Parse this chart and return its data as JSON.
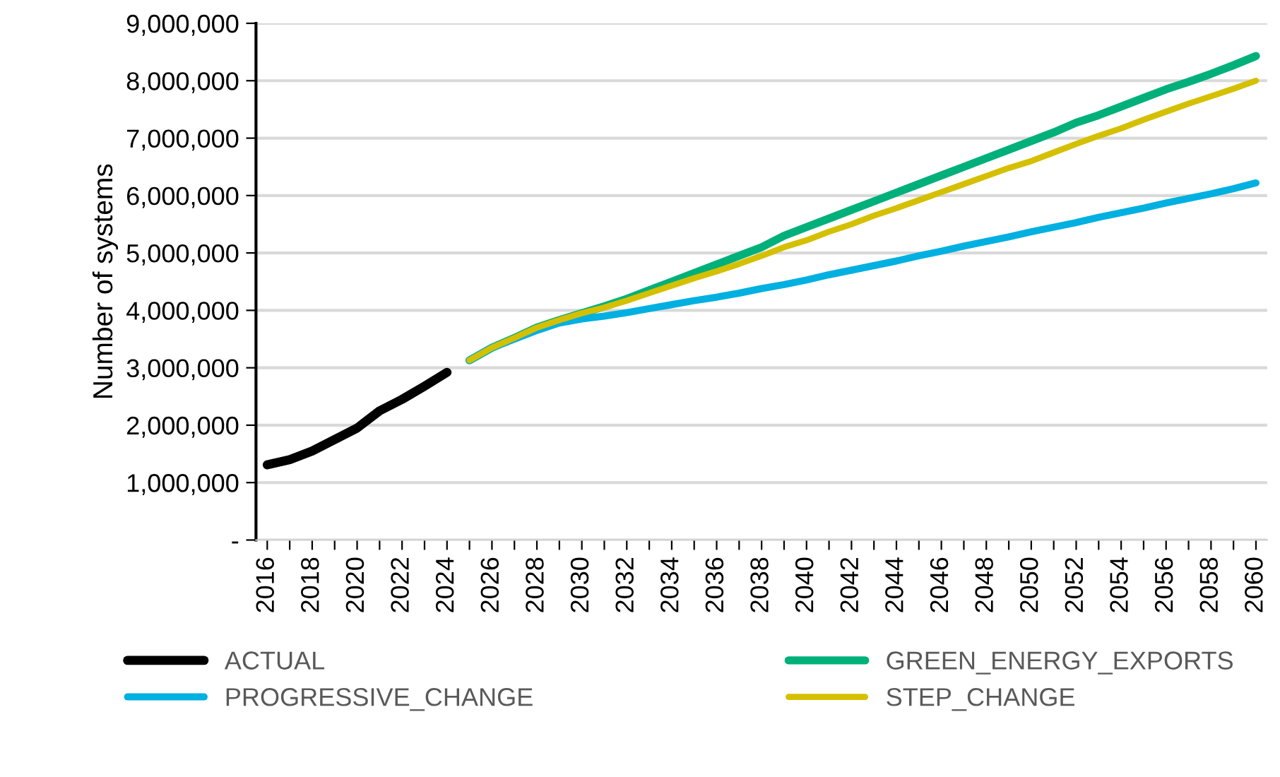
{
  "chart_data": {
    "type": "line",
    "ylabel": "Number of systems",
    "categories": [
      "2016",
      null,
      "2018",
      null,
      "2020",
      null,
      "2022",
      null,
      "2024",
      null,
      "2026",
      null,
      "2028",
      null,
      "2030",
      null,
      "2032",
      null,
      "2034",
      null,
      "2036",
      null,
      "2038",
      null,
      "2040",
      null,
      "2042",
      null,
      "2044",
      null,
      "2046",
      null,
      "2048",
      null,
      "2050",
      null,
      "2052",
      null,
      "2054",
      null,
      "2056",
      null,
      "2058",
      null,
      "2060"
    ],
    "series": [
      {
        "name": "ACTUAL",
        "color": "#000000",
        "values": [
          1310000,
          1400000,
          1550000,
          1750000,
          1950000,
          2250000,
          2450000,
          2680000,
          2920000,
          null,
          null,
          null,
          null,
          null,
          null,
          null,
          null,
          null,
          null,
          null,
          null,
          null,
          null,
          null,
          null,
          null,
          null,
          null,
          null,
          null,
          null,
          null,
          null,
          null,
          null,
          null,
          null,
          null,
          null,
          null,
          null,
          null,
          null,
          null,
          null
        ]
      },
      {
        "name": "GREEN_ENERGY_EXPORTS",
        "color": "#00b07a",
        "values": [
          null,
          null,
          null,
          null,
          null,
          null,
          null,
          null,
          null,
          3130000,
          3350000,
          3520000,
          3700000,
          3830000,
          3950000,
          4070000,
          4200000,
          4350000,
          4500000,
          4650000,
          4800000,
          4950000,
          5100000,
          5300000,
          5450000,
          5600000,
          5750000,
          5900000,
          6050000,
          6200000,
          6350000,
          6500000,
          6650000,
          6800000,
          6950000,
          7100000,
          7270000,
          7400000,
          7550000,
          7700000,
          7850000,
          7980000,
          8120000,
          8270000,
          8430000
        ]
      },
      {
        "name": "PROGRESSIVE_CHANGE",
        "color": "#00b0e0",
        "values": [
          null,
          null,
          null,
          null,
          null,
          null,
          null,
          null,
          null,
          3130000,
          3350000,
          3500000,
          3650000,
          3780000,
          3850000,
          3900000,
          3960000,
          4030000,
          4100000,
          4170000,
          4230000,
          4300000,
          4380000,
          4450000,
          4530000,
          4620000,
          4700000,
          4780000,
          4860000,
          4950000,
          5030000,
          5120000,
          5200000,
          5280000,
          5370000,
          5450000,
          5530000,
          5620000,
          5700000,
          5780000,
          5870000,
          5950000,
          6030000,
          6120000,
          6220000
        ]
      },
      {
        "name": "STEP_CHANGE",
        "color": "#d4c000",
        "values": [
          null,
          null,
          null,
          null,
          null,
          null,
          null,
          null,
          null,
          3130000,
          3350000,
          3520000,
          3700000,
          3830000,
          3950000,
          4050000,
          4170000,
          4300000,
          4430000,
          4560000,
          4680000,
          4810000,
          4950000,
          5100000,
          5220000,
          5370000,
          5500000,
          5650000,
          5780000,
          5920000,
          6060000,
          6200000,
          6340000,
          6480000,
          6600000,
          6750000,
          6900000,
          7040000,
          7170000,
          7320000,
          7460000,
          7600000,
          7730000,
          7860000,
          8000000
        ]
      }
    ],
    "ylim": [
      0,
      9000000
    ],
    "yticks": [
      {
        "value": 0,
        "label": "-"
      },
      {
        "value": 1000000,
        "label": "1,000,000"
      },
      {
        "value": 2000000,
        "label": "2,000,000"
      },
      {
        "value": 3000000,
        "label": "3,000,000"
      },
      {
        "value": 4000000,
        "label": "4,000,000"
      },
      {
        "value": 5000000,
        "label": "5,000,000"
      },
      {
        "value": 6000000,
        "label": "6,000,000"
      },
      {
        "value": 7000000,
        "label": "7,000,000"
      },
      {
        "value": 8000000,
        "label": "8,000,000"
      },
      {
        "value": 9000000,
        "label": "9,000,000"
      }
    ],
    "grid": "y",
    "legend": "bottom",
    "marker": "none",
    "line_style": "solid"
  }
}
